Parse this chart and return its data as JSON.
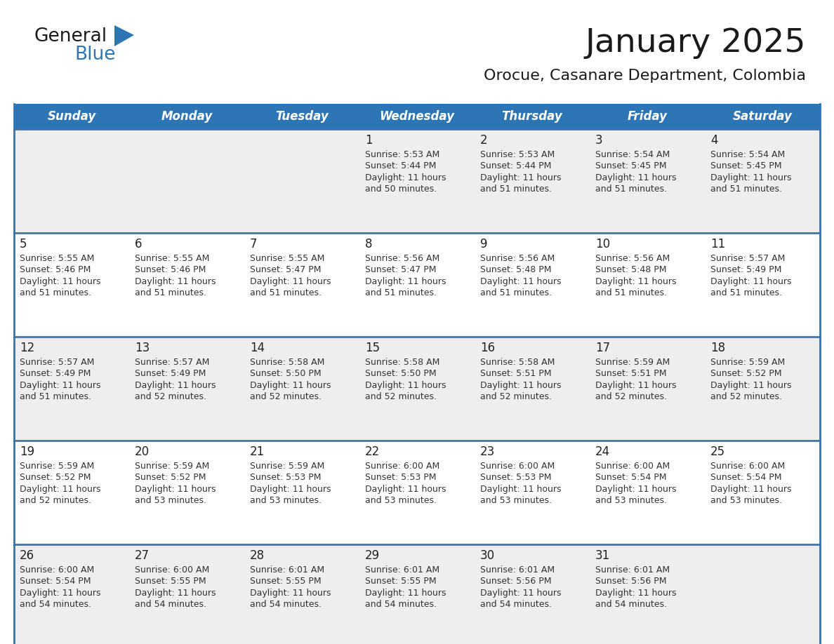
{
  "title": "January 2025",
  "subtitle": "Orocue, Casanare Department, Colombia",
  "header_bg": "#2E75B6",
  "header_text_color": "#FFFFFF",
  "row_bg_colors": [
    "#EEEEEE",
    "#FFFFFF",
    "#EEEEEE",
    "#FFFFFF",
    "#EEEEEE"
  ],
  "day_number_color": "#2E2020",
  "text_color": "#333333",
  "border_color": "#2E75B6",
  "row_border_color": "#4472AA",
  "days_of_week": [
    "Sunday",
    "Monday",
    "Tuesday",
    "Wednesday",
    "Thursday",
    "Friday",
    "Saturday"
  ],
  "weeks": [
    [
      {
        "day": "",
        "sunrise": "",
        "sunset": "",
        "daylight": ""
      },
      {
        "day": "",
        "sunrise": "",
        "sunset": "",
        "daylight": ""
      },
      {
        "day": "",
        "sunrise": "",
        "sunset": "",
        "daylight": ""
      },
      {
        "day": "1",
        "sunrise": "5:53 AM",
        "sunset": "5:44 PM",
        "daylight": "11 hours and 50 minutes."
      },
      {
        "day": "2",
        "sunrise": "5:53 AM",
        "sunset": "5:44 PM",
        "daylight": "11 hours and 51 minutes."
      },
      {
        "day": "3",
        "sunrise": "5:54 AM",
        "sunset": "5:45 PM",
        "daylight": "11 hours and 51 minutes."
      },
      {
        "day": "4",
        "sunrise": "5:54 AM",
        "sunset": "5:45 PM",
        "daylight": "11 hours and 51 minutes."
      }
    ],
    [
      {
        "day": "5",
        "sunrise": "5:55 AM",
        "sunset": "5:46 PM",
        "daylight": "11 hours and 51 minutes."
      },
      {
        "day": "6",
        "sunrise": "5:55 AM",
        "sunset": "5:46 PM",
        "daylight": "11 hours and 51 minutes."
      },
      {
        "day": "7",
        "sunrise": "5:55 AM",
        "sunset": "5:47 PM",
        "daylight": "11 hours and 51 minutes."
      },
      {
        "day": "8",
        "sunrise": "5:56 AM",
        "sunset": "5:47 PM",
        "daylight": "11 hours and 51 minutes."
      },
      {
        "day": "9",
        "sunrise": "5:56 AM",
        "sunset": "5:48 PM",
        "daylight": "11 hours and 51 minutes."
      },
      {
        "day": "10",
        "sunrise": "5:56 AM",
        "sunset": "5:48 PM",
        "daylight": "11 hours and 51 minutes."
      },
      {
        "day": "11",
        "sunrise": "5:57 AM",
        "sunset": "5:49 PM",
        "daylight": "11 hours and 51 minutes."
      }
    ],
    [
      {
        "day": "12",
        "sunrise": "5:57 AM",
        "sunset": "5:49 PM",
        "daylight": "11 hours and 51 minutes."
      },
      {
        "day": "13",
        "sunrise": "5:57 AM",
        "sunset": "5:49 PM",
        "daylight": "11 hours and 52 minutes."
      },
      {
        "day": "14",
        "sunrise": "5:58 AM",
        "sunset": "5:50 PM",
        "daylight": "11 hours and 52 minutes."
      },
      {
        "day": "15",
        "sunrise": "5:58 AM",
        "sunset": "5:50 PM",
        "daylight": "11 hours and 52 minutes."
      },
      {
        "day": "16",
        "sunrise": "5:58 AM",
        "sunset": "5:51 PM",
        "daylight": "11 hours and 52 minutes."
      },
      {
        "day": "17",
        "sunrise": "5:59 AM",
        "sunset": "5:51 PM",
        "daylight": "11 hours and 52 minutes."
      },
      {
        "day": "18",
        "sunrise": "5:59 AM",
        "sunset": "5:52 PM",
        "daylight": "11 hours and 52 minutes."
      }
    ],
    [
      {
        "day": "19",
        "sunrise": "5:59 AM",
        "sunset": "5:52 PM",
        "daylight": "11 hours and 52 minutes."
      },
      {
        "day": "20",
        "sunrise": "5:59 AM",
        "sunset": "5:52 PM",
        "daylight": "11 hours and 53 minutes."
      },
      {
        "day": "21",
        "sunrise": "5:59 AM",
        "sunset": "5:53 PM",
        "daylight": "11 hours and 53 minutes."
      },
      {
        "day": "22",
        "sunrise": "6:00 AM",
        "sunset": "5:53 PM",
        "daylight": "11 hours and 53 minutes."
      },
      {
        "day": "23",
        "sunrise": "6:00 AM",
        "sunset": "5:53 PM",
        "daylight": "11 hours and 53 minutes."
      },
      {
        "day": "24",
        "sunrise": "6:00 AM",
        "sunset": "5:54 PM",
        "daylight": "11 hours and 53 minutes."
      },
      {
        "day": "25",
        "sunrise": "6:00 AM",
        "sunset": "5:54 PM",
        "daylight": "11 hours and 53 minutes."
      }
    ],
    [
      {
        "day": "26",
        "sunrise": "6:00 AM",
        "sunset": "5:54 PM",
        "daylight": "11 hours and 54 minutes."
      },
      {
        "day": "27",
        "sunrise": "6:00 AM",
        "sunset": "5:55 PM",
        "daylight": "11 hours and 54 minutes."
      },
      {
        "day": "28",
        "sunrise": "6:01 AM",
        "sunset": "5:55 PM",
        "daylight": "11 hours and 54 minutes."
      },
      {
        "day": "29",
        "sunrise": "6:01 AM",
        "sunset": "5:55 PM",
        "daylight": "11 hours and 54 minutes."
      },
      {
        "day": "30",
        "sunrise": "6:01 AM",
        "sunset": "5:56 PM",
        "daylight": "11 hours and 54 minutes."
      },
      {
        "day": "31",
        "sunrise": "6:01 AM",
        "sunset": "5:56 PM",
        "daylight": "11 hours and 54 minutes."
      },
      {
        "day": "",
        "sunrise": "",
        "sunset": "",
        "daylight": ""
      }
    ]
  ],
  "logo_text1": "General",
  "logo_text2": "Blue",
  "logo_color1": "#1a1a1a",
  "logo_color2": "#2E75B6",
  "fig_width": 11.88,
  "fig_height": 9.18,
  "dpi": 100
}
